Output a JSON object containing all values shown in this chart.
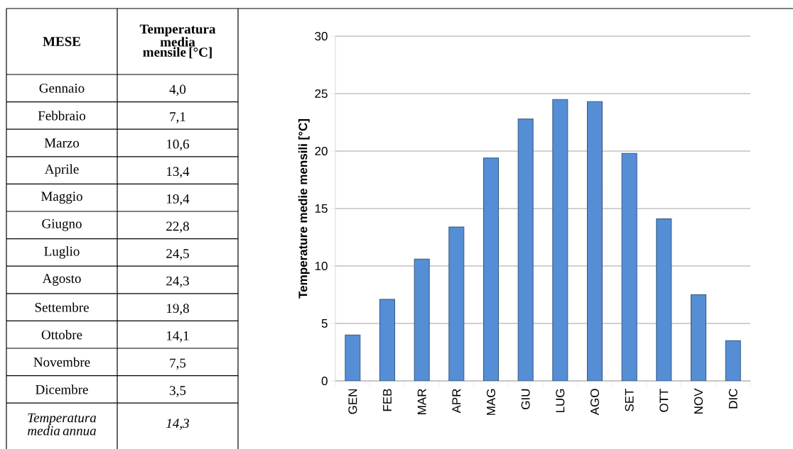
{
  "chart_data": {
    "type": "bar",
    "ylabel": "Temperature medie mensili [°C]",
    "categories": [
      "GEN",
      "FEB",
      "MAR",
      "APR",
      "MAG",
      "GIU",
      "LUG",
      "AGO",
      "SET",
      "OTT",
      "NOV",
      "DIC"
    ],
    "values": [
      4.0,
      7.1,
      10.6,
      13.4,
      19.4,
      22.8,
      24.5,
      24.3,
      19.8,
      14.1,
      7.5,
      3.5
    ],
    "color": "#558ed5",
    "ylim": [
      0,
      30
    ],
    "yticks": [
      0,
      5,
      10,
      15,
      20,
      25,
      30
    ],
    "grid": "y",
    "annotations": [
      "MESE",
      "Temperatura media mensile [°C]",
      "Gennaio",
      "Febbraio",
      "Marzo",
      "Aprile",
      "Maggio",
      "Giugno",
      "Luglio",
      "Agosto",
      "Settembre",
      "Ottobre",
      "Novembre",
      "Dicembre",
      "4,0",
      "7,1",
      "10,6",
      "13,4",
      "19,4",
      "22,8",
      "24,5",
      "24,3",
      "19,8",
      "14,1",
      "7,5",
      "3,5",
      "Temperatura media annua",
      "14,3"
    ]
  }
}
